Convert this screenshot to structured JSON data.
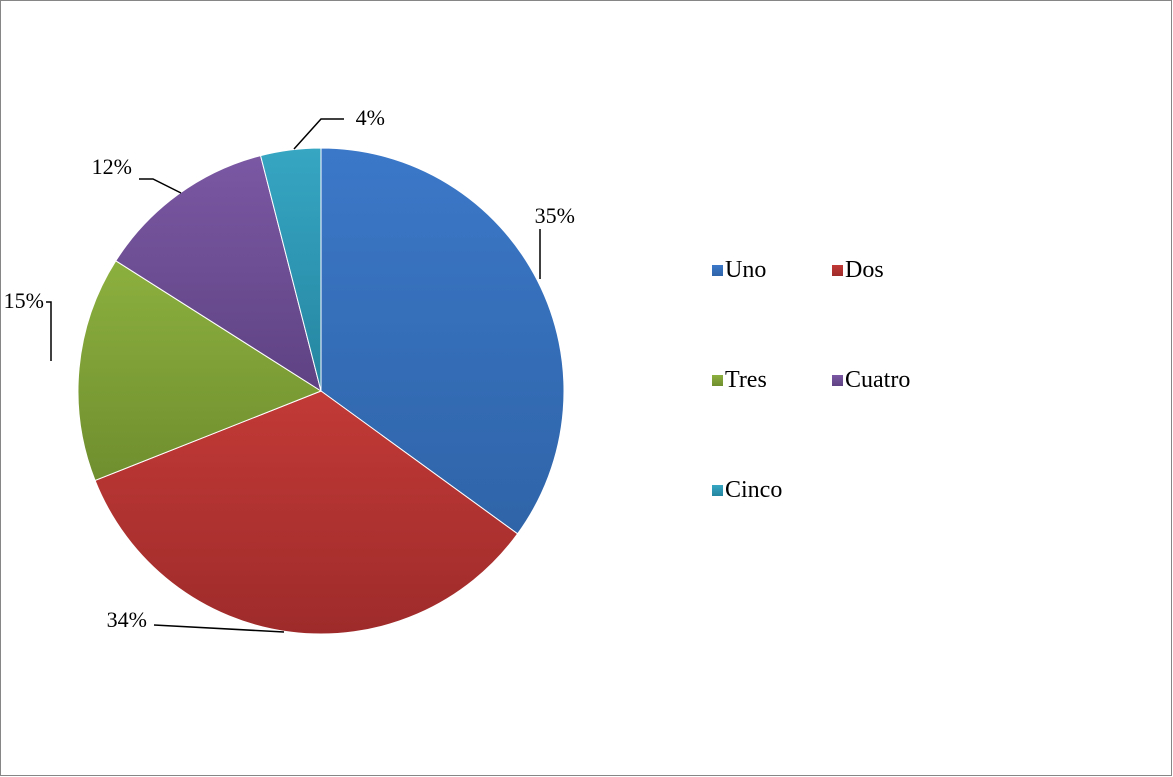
{
  "chart_data": {
    "type": "pie",
    "categories": [
      "Uno",
      "Dos",
      "Tres",
      "Cuatro",
      "Cinco"
    ],
    "values": [
      35,
      34,
      15,
      12,
      4
    ],
    "unit": "%",
    "title": "",
    "data_labels": [
      "35%",
      "34%",
      "15%",
      "12%",
      "4%"
    ],
    "legend_placement": "right",
    "colors": [
      "#3B78C8",
      "#C23A37",
      "#8CB03F",
      "#7B58A3",
      "#36A6C3"
    ],
    "colors_dark": [
      "#2F64A8",
      "#9E2B2A",
      "#6F8E2E",
      "#5E4283",
      "#2585A0"
    ]
  }
}
